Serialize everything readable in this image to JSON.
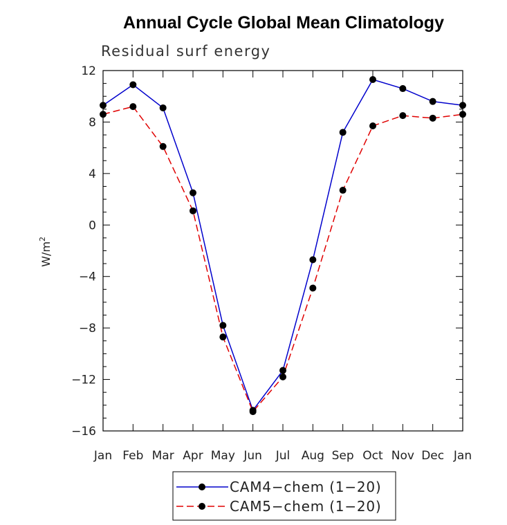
{
  "chart_data": {
    "type": "line",
    "title": "Annual Cycle Global Mean Climatology",
    "subtitle": "Residual surf energy",
    "ylabel": "W/m",
    "ylabel_sup": "2",
    "ylim": [
      -16,
      12
    ],
    "yticks": [
      -16,
      -12,
      -8,
      -4,
      0,
      4,
      8,
      12
    ],
    "grid": false,
    "legend_position": "bottom-center",
    "categories": [
      "Jan",
      "Feb",
      "Mar",
      "Apr",
      "May",
      "Jun",
      "Jul",
      "Aug",
      "Sep",
      "Oct",
      "Nov",
      "Dec",
      "Jan"
    ],
    "series": [
      {
        "name": "CAM4-chem (1-20)",
        "color": "#0000cc",
        "dash": "solid",
        "values": [
          9.3,
          10.9,
          9.1,
          2.5,
          -7.8,
          -14.4,
          -11.3,
          -2.7,
          7.2,
          11.3,
          10.6,
          9.6,
          9.3
        ]
      },
      {
        "name": "CAM5-chem (1-20)",
        "color": "#e00000",
        "dash": "dashed",
        "values": [
          8.6,
          9.2,
          6.1,
          1.1,
          -8.7,
          -14.5,
          -11.8,
          -4.9,
          2.7,
          7.7,
          8.5,
          8.3,
          8.6
        ]
      }
    ]
  }
}
